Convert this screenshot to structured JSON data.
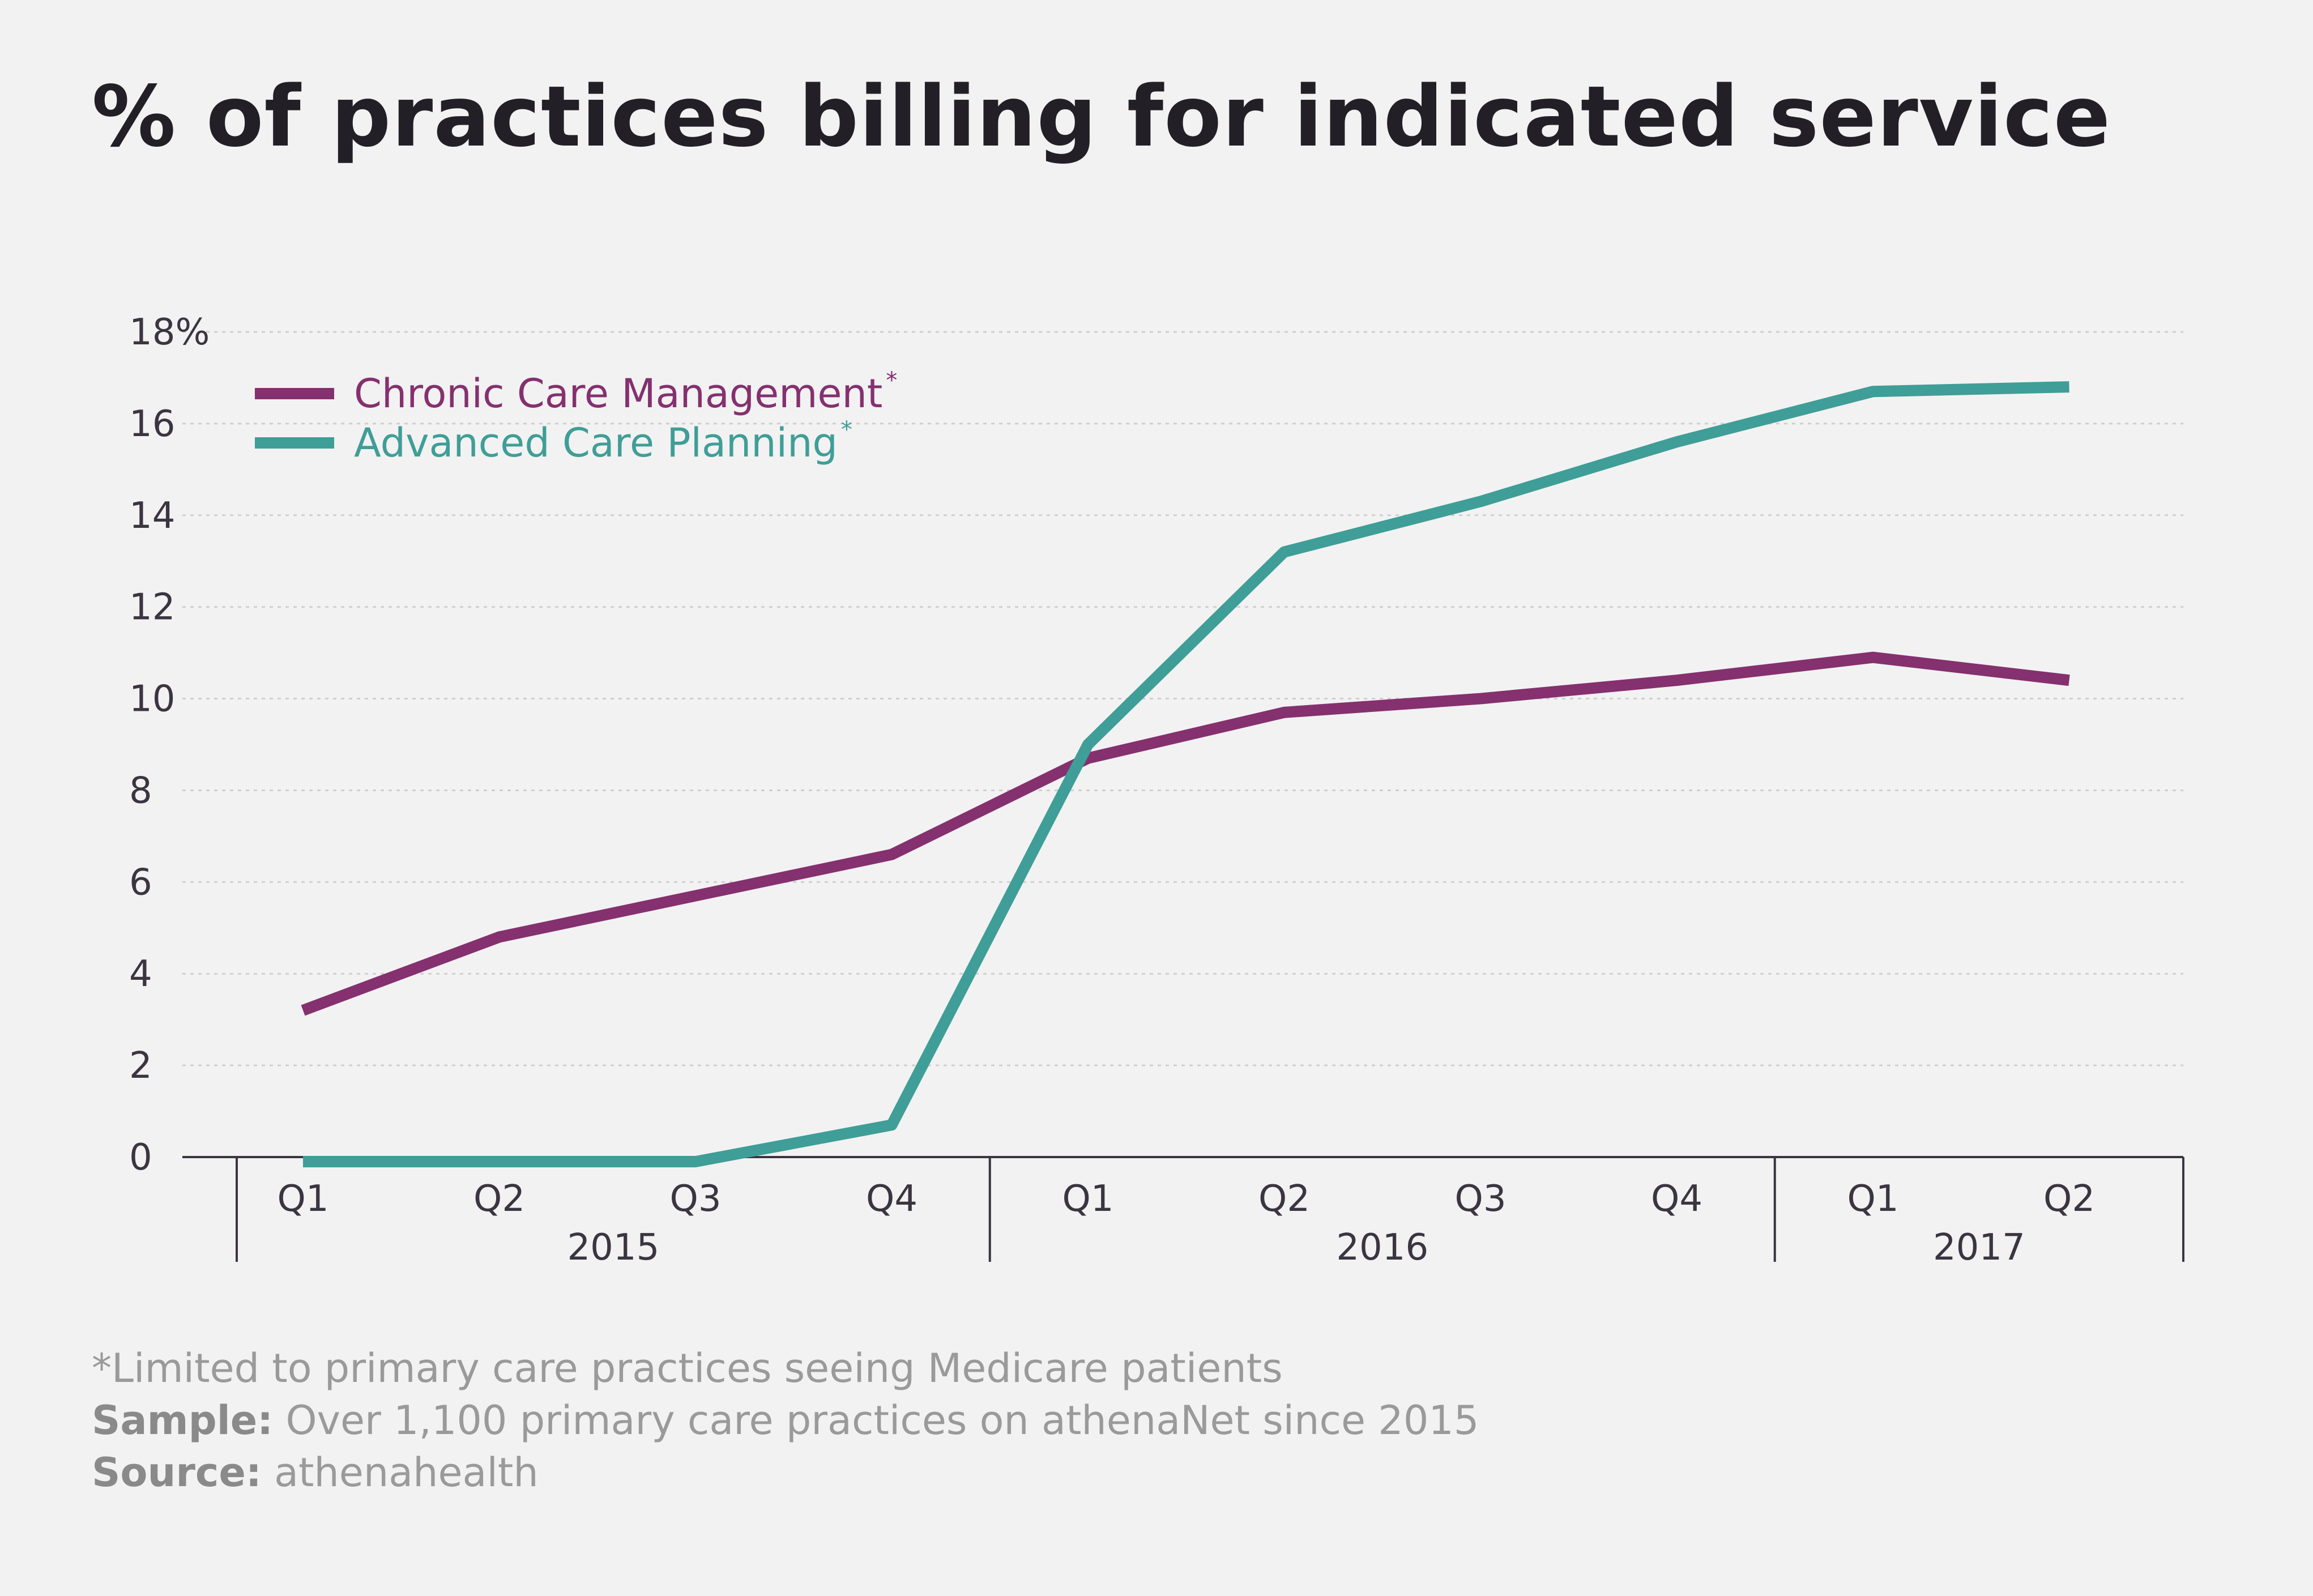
{
  "title": "% of practices billing for indicated service",
  "footer": {
    "note": "*Limited to primary care practices seeing Medicare patients",
    "sample_label": "Sample:",
    "sample_text": "Over 1,100 primary care practices on athenaNet since 2015",
    "source_label": "Source:",
    "source_text": "athenahealth"
  },
  "colors": {
    "background": "#f2f2f2",
    "chronic": "#85306f",
    "advanced": "#3f9e97",
    "axis": "#3a3540",
    "grid": "#cfcfcf"
  },
  "chart_data": {
    "type": "line",
    "title": "% of practices billing for indicated service",
    "categories": [
      "Q1",
      "Q2",
      "Q3",
      "Q4",
      "Q1",
      "Q2",
      "Q3",
      "Q4",
      "Q1",
      "Q2"
    ],
    "year_groups": [
      {
        "label": "2015",
        "quarters": 4
      },
      {
        "label": "2016",
        "quarters": 4
      },
      {
        "label": "2017",
        "quarters": 2
      }
    ],
    "series": [
      {
        "name": "Chronic Care Management",
        "marker": "*",
        "color": "#85306f",
        "values": [
          3.2,
          4.8,
          5.7,
          6.6,
          8.7,
          9.7,
          10.0,
          10.4,
          10.9,
          10.4
        ]
      },
      {
        "name": "Advanced Care Planning",
        "marker": "*",
        "color": "#3f9e97",
        "values": [
          -0.1,
          -0.1,
          -0.1,
          0.7,
          9.0,
          13.2,
          14.3,
          15.6,
          16.7,
          16.8
        ]
      }
    ],
    "y_ticks": [
      "0",
      "2",
      "4",
      "6",
      "8",
      "10",
      "12",
      "14",
      "16",
      "18%"
    ],
    "ylim": [
      0,
      18
    ],
    "grid": true,
    "legend_position": "top-left"
  }
}
